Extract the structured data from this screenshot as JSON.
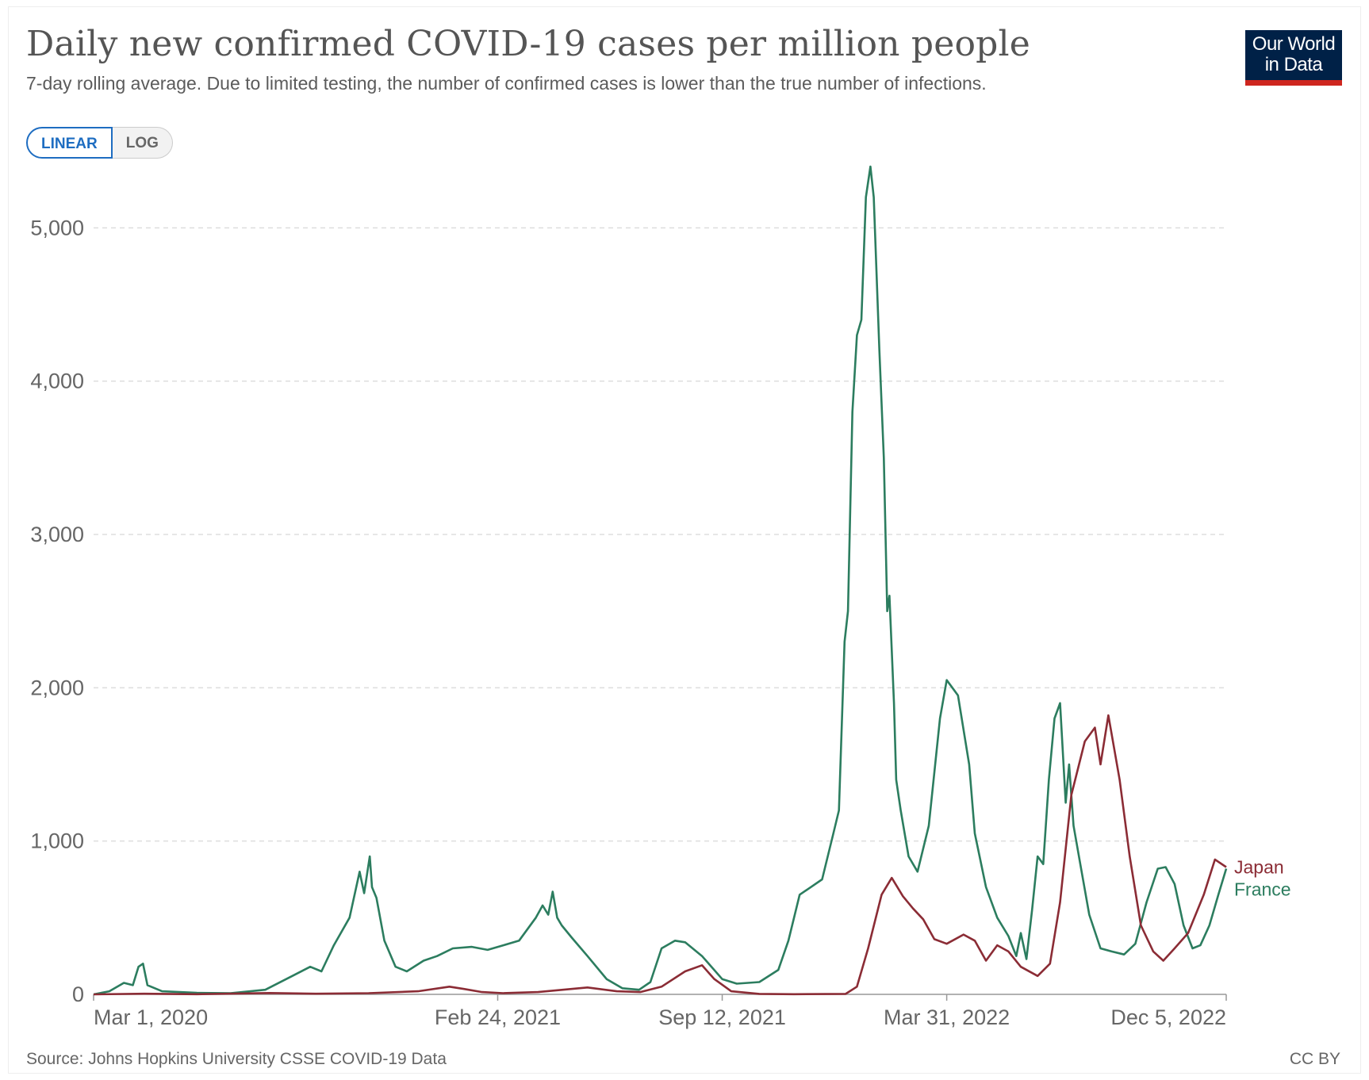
{
  "header": {
    "title": "Daily new confirmed COVID-19 cases per million people",
    "subtitle": "7-day rolling average. Due to limited testing, the number of confirmed cases is lower than the true number of infections.",
    "logo_line1": "Our World",
    "logo_line2": "in Data"
  },
  "scale_toggle": {
    "linear_label": "LINEAR",
    "log_label": "LOG",
    "selected": "LINEAR"
  },
  "footer": {
    "source": "Source: Johns Hopkins University CSSE COVID-19 Data",
    "license": "CC BY"
  },
  "colors": {
    "france": "#2c7d5f",
    "japan": "#8b2c35",
    "grid": "#dddddd",
    "axis": "#999999",
    "accent": "#1e6dc1"
  },
  "chart_data": {
    "type": "line",
    "title": "Daily new confirmed COVID-19 cases per million people",
    "subtitle": "7-day rolling average. Due to limited testing, the number of confirmed cases is lower than the true number of infections.",
    "xlabel": "",
    "ylabel": "",
    "x_range": [
      "2020-03-01",
      "2022-12-05"
    ],
    "ylim": [
      0,
      5000
    ],
    "y_ticks": [
      0,
      1000,
      2000,
      3000,
      4000,
      5000
    ],
    "y_tick_labels": [
      "0",
      "1,000",
      "2,000",
      "3,000",
      "4,000",
      "5,000"
    ],
    "x_ticks": [
      "2020-03-01",
      "2021-02-24",
      "2021-09-12",
      "2022-03-31",
      "2022-12-05"
    ],
    "x_tick_labels": [
      "Mar 1, 2020",
      "Feb 24, 2021",
      "Sep 12, 2021",
      "Mar 31, 2022",
      "Dec 5, 2022"
    ],
    "grid": "horizontal dashed",
    "legend": "end-of-line labels",
    "series": [
      {
        "name": "France",
        "color": "#2c7d5f",
        "points": [
          [
            "2020-03-01",
            0
          ],
          [
            "2020-03-15",
            20
          ],
          [
            "2020-03-28",
            75
          ],
          [
            "2020-04-05",
            60
          ],
          [
            "2020-04-10",
            180
          ],
          [
            "2020-04-14",
            200
          ],
          [
            "2020-04-18",
            60
          ],
          [
            "2020-05-01",
            20
          ],
          [
            "2020-06-01",
            10
          ],
          [
            "2020-07-01",
            8
          ],
          [
            "2020-08-01",
            30
          ],
          [
            "2020-08-25",
            120
          ],
          [
            "2020-09-10",
            180
          ],
          [
            "2020-09-20",
            150
          ],
          [
            "2020-10-01",
            320
          ],
          [
            "2020-10-15",
            500
          ],
          [
            "2020-10-24",
            800
          ],
          [
            "2020-10-28",
            660
          ],
          [
            "2020-11-02",
            900
          ],
          [
            "2020-11-04",
            700
          ],
          [
            "2020-11-08",
            630
          ],
          [
            "2020-11-15",
            350
          ],
          [
            "2020-11-25",
            180
          ],
          [
            "2020-12-05",
            150
          ],
          [
            "2020-12-20",
            220
          ],
          [
            "2021-01-01",
            250
          ],
          [
            "2021-01-15",
            300
          ],
          [
            "2021-02-01",
            310
          ],
          [
            "2021-02-15",
            290
          ],
          [
            "2021-03-01",
            320
          ],
          [
            "2021-03-15",
            350
          ],
          [
            "2021-03-30",
            500
          ],
          [
            "2021-04-05",
            580
          ],
          [
            "2021-04-10",
            520
          ],
          [
            "2021-04-14",
            670
          ],
          [
            "2021-04-18",
            500
          ],
          [
            "2021-04-22",
            450
          ],
          [
            "2021-05-01",
            370
          ],
          [
            "2021-05-15",
            250
          ],
          [
            "2021-06-01",
            100
          ],
          [
            "2021-06-15",
            40
          ],
          [
            "2021-06-30",
            30
          ],
          [
            "2021-07-10",
            80
          ],
          [
            "2021-07-20",
            300
          ],
          [
            "2021-08-01",
            350
          ],
          [
            "2021-08-10",
            340
          ],
          [
            "2021-08-25",
            250
          ],
          [
            "2021-09-12",
            100
          ],
          [
            "2021-09-25",
            70
          ],
          [
            "2021-10-15",
            80
          ],
          [
            "2021-11-01",
            160
          ],
          [
            "2021-11-10",
            350
          ],
          [
            "2021-11-20",
            650
          ],
          [
            "2021-11-30",
            700
          ],
          [
            "2021-12-10",
            750
          ],
          [
            "2021-12-20",
            1050
          ],
          [
            "2021-12-25",
            1200
          ],
          [
            "2021-12-30",
            2300
          ],
          [
            "2022-01-02",
            2500
          ],
          [
            "2022-01-06",
            3800
          ],
          [
            "2022-01-10",
            4300
          ],
          [
            "2022-01-14",
            4400
          ],
          [
            "2022-01-18",
            5200
          ],
          [
            "2022-01-22",
            5400
          ],
          [
            "2022-01-25",
            5200
          ],
          [
            "2022-01-30",
            4200
          ],
          [
            "2022-02-03",
            3500
          ],
          [
            "2022-02-06",
            2500
          ],
          [
            "2022-02-08",
            2600
          ],
          [
            "2022-02-12",
            1900
          ],
          [
            "2022-02-14",
            1400
          ],
          [
            "2022-02-18",
            1200
          ],
          [
            "2022-02-25",
            900
          ],
          [
            "2022-03-05",
            800
          ],
          [
            "2022-03-15",
            1100
          ],
          [
            "2022-03-25",
            1800
          ],
          [
            "2022-03-31",
            2050
          ],
          [
            "2022-04-05",
            2000
          ],
          [
            "2022-04-10",
            1950
          ],
          [
            "2022-04-20",
            1500
          ],
          [
            "2022-04-25",
            1050
          ],
          [
            "2022-05-05",
            700
          ],
          [
            "2022-05-15",
            500
          ],
          [
            "2022-05-25",
            380
          ],
          [
            "2022-06-01",
            250
          ],
          [
            "2022-06-05",
            400
          ],
          [
            "2022-06-10",
            230
          ],
          [
            "2022-06-15",
            550
          ],
          [
            "2022-06-20",
            900
          ],
          [
            "2022-06-25",
            850
          ],
          [
            "2022-06-30",
            1400
          ],
          [
            "2022-07-05",
            1800
          ],
          [
            "2022-07-10",
            1900
          ],
          [
            "2022-07-15",
            1250
          ],
          [
            "2022-07-18",
            1500
          ],
          [
            "2022-07-22",
            1100
          ],
          [
            "2022-07-28",
            850
          ],
          [
            "2022-08-05",
            520
          ],
          [
            "2022-08-15",
            300
          ],
          [
            "2022-08-25",
            280
          ],
          [
            "2022-09-05",
            260
          ],
          [
            "2022-09-15",
            330
          ],
          [
            "2022-09-25",
            600
          ],
          [
            "2022-10-05",
            820
          ],
          [
            "2022-10-12",
            830
          ],
          [
            "2022-10-20",
            720
          ],
          [
            "2022-10-28",
            450
          ],
          [
            "2022-11-05",
            300
          ],
          [
            "2022-11-12",
            320
          ],
          [
            "2022-11-20",
            450
          ],
          [
            "2022-11-28",
            650
          ],
          [
            "2022-12-05",
            820
          ]
        ]
      },
      {
        "name": "Japan",
        "color": "#8b2c35",
        "points": [
          [
            "2020-03-01",
            0
          ],
          [
            "2020-04-15",
            4
          ],
          [
            "2020-06-01",
            1
          ],
          [
            "2020-08-05",
            9
          ],
          [
            "2020-09-15",
            4
          ],
          [
            "2020-11-01",
            8
          ],
          [
            "2020-12-15",
            20
          ],
          [
            "2021-01-12",
            50
          ],
          [
            "2021-01-25",
            35
          ],
          [
            "2021-02-10",
            15
          ],
          [
            "2021-03-01",
            8
          ],
          [
            "2021-04-01",
            15
          ],
          [
            "2021-05-15",
            45
          ],
          [
            "2021-06-10",
            20
          ],
          [
            "2021-07-01",
            15
          ],
          [
            "2021-07-20",
            50
          ],
          [
            "2021-08-10",
            150
          ],
          [
            "2021-08-25",
            190
          ],
          [
            "2021-09-05",
            100
          ],
          [
            "2021-09-20",
            20
          ],
          [
            "2021-10-15",
            3
          ],
          [
            "2021-11-15",
            1
          ],
          [
            "2021-12-31",
            3
          ],
          [
            "2022-01-10",
            50
          ],
          [
            "2022-01-20",
            300
          ],
          [
            "2022-02-01",
            650
          ],
          [
            "2022-02-10",
            760
          ],
          [
            "2022-02-20",
            640
          ],
          [
            "2022-03-01",
            560
          ],
          [
            "2022-03-10",
            490
          ],
          [
            "2022-03-20",
            360
          ],
          [
            "2022-03-31",
            330
          ],
          [
            "2022-04-15",
            390
          ],
          [
            "2022-04-25",
            350
          ],
          [
            "2022-05-05",
            220
          ],
          [
            "2022-05-15",
            320
          ],
          [
            "2022-05-25",
            280
          ],
          [
            "2022-06-05",
            180
          ],
          [
            "2022-06-20",
            120
          ],
          [
            "2022-07-01",
            200
          ],
          [
            "2022-07-10",
            600
          ],
          [
            "2022-07-20",
            1300
          ],
          [
            "2022-08-01",
            1650
          ],
          [
            "2022-08-10",
            1740
          ],
          [
            "2022-08-15",
            1500
          ],
          [
            "2022-08-22",
            1820
          ],
          [
            "2022-09-01",
            1400
          ],
          [
            "2022-09-10",
            900
          ],
          [
            "2022-09-20",
            450
          ],
          [
            "2022-10-01",
            280
          ],
          [
            "2022-10-10",
            220
          ],
          [
            "2022-10-20",
            300
          ],
          [
            "2022-11-01",
            400
          ],
          [
            "2022-11-15",
            650
          ],
          [
            "2022-11-25",
            880
          ],
          [
            "2022-12-05",
            830
          ]
        ]
      }
    ]
  }
}
